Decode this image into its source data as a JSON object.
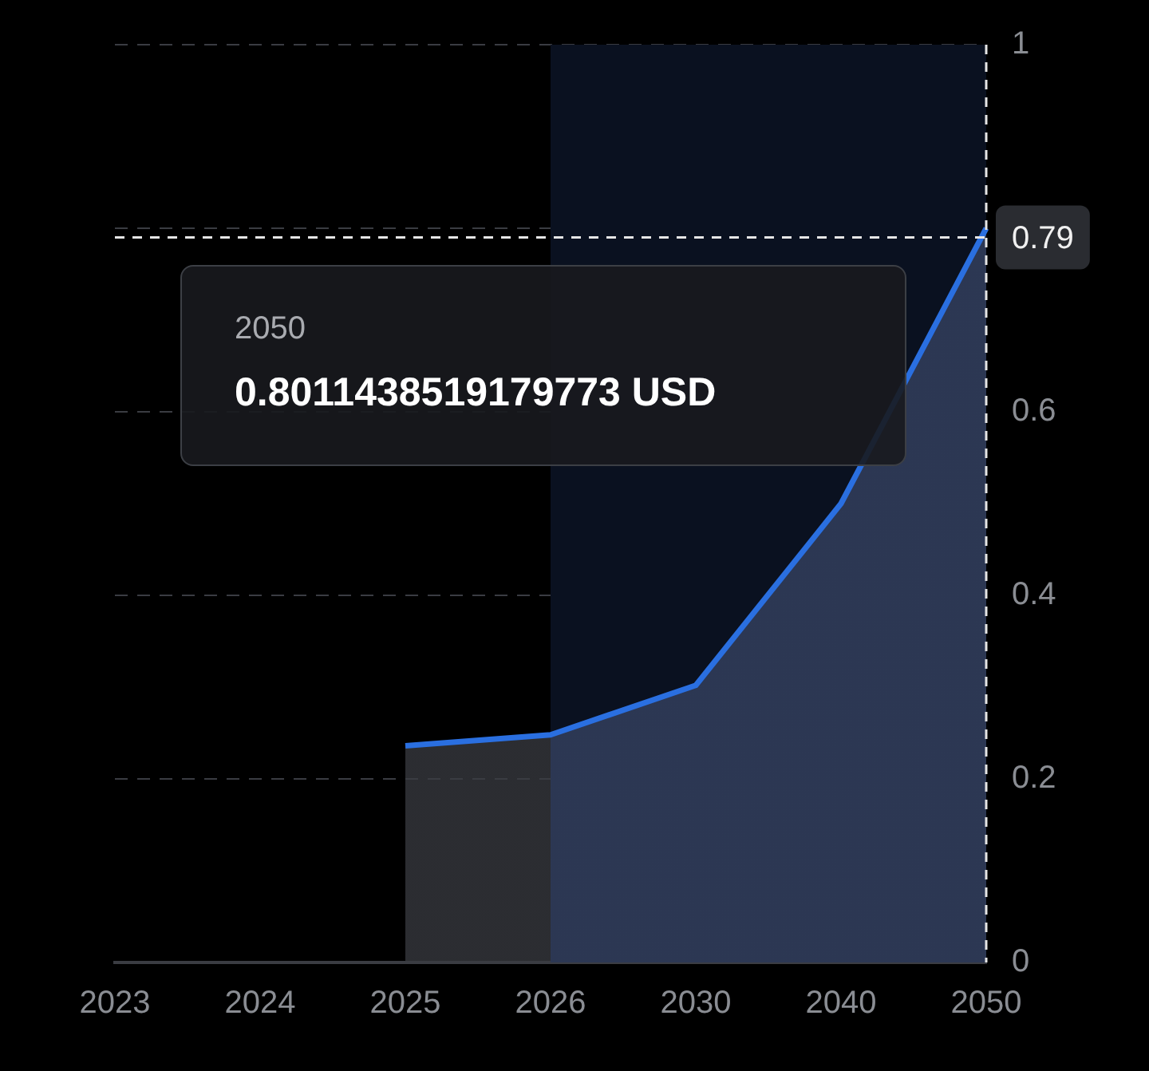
{
  "chart_data": {
    "type": "area",
    "categories": [
      "2023",
      "2024",
      "2025",
      "2026",
      "2030",
      "2040",
      "2050"
    ],
    "series": [
      {
        "color": "#2a6fe0",
        "values": [
          null,
          null,
          0.236,
          0.248,
          0.302,
          0.5,
          0.8
        ]
      }
    ],
    "ylim": [
      0,
      1
    ],
    "yticks": [
      0,
      0.2,
      0.4,
      0.6,
      {
        "value": 0.8,
        "label": null
      },
      1
    ],
    "grid": "y",
    "legend": false,
    "bands": [
      {
        "axis": "x",
        "from": "2026",
        "to": "2050",
        "color": "#0a1120"
      }
    ],
    "ref_lines": [
      {
        "axis": "x",
        "value": "2050",
        "line_style": "dashed",
        "color": "#e6e6e6"
      },
      {
        "axis": "y",
        "value": 0.79,
        "label": "0.79",
        "line_style": "dashed",
        "color": "#e6e6e6"
      }
    ],
    "annotations": [
      "2050",
      "0.8011438519179773 USD"
    ]
  }
}
